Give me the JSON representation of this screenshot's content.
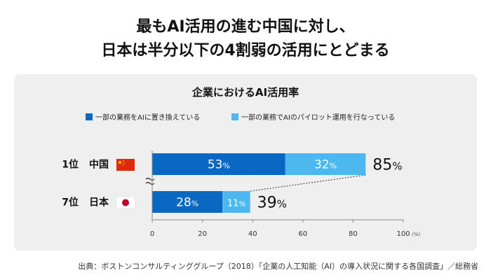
{
  "headline": {
    "line1": "最もAI活用の進む中国に対し、",
    "line2": "日本は半分以下の4割弱の活用にとどまる"
  },
  "chart_data": {
    "type": "bar",
    "stacked": true,
    "orientation": "horizontal",
    "title": "企業におけるAI活用率",
    "categories": [
      "中国",
      "日本"
    ],
    "ranks": [
      "1位",
      "7位"
    ],
    "flags": [
      "china-flag",
      "japan-flag"
    ],
    "series": [
      {
        "name": "一部の業務をAIに置き換えている",
        "values": [
          53,
          28
        ],
        "color": "#0a67c2"
      },
      {
        "name": "一部の業務でAIのパイロット運用を行なっている",
        "values": [
          32,
          11
        ],
        "color": "#4db8f0"
      }
    ],
    "totals": [
      85,
      39
    ],
    "value_suffix": "%",
    "xlim": [
      0,
      100
    ],
    "xticks": [
      0,
      20,
      40,
      60,
      80,
      100
    ],
    "x_unit": "(%)",
    "legend_position": "top",
    "grid": false
  },
  "source": "出典：ボストンコンサルティンググループ（2018）「企業の人工知能（AI）の導入状況に関する各国調査」／総務省"
}
